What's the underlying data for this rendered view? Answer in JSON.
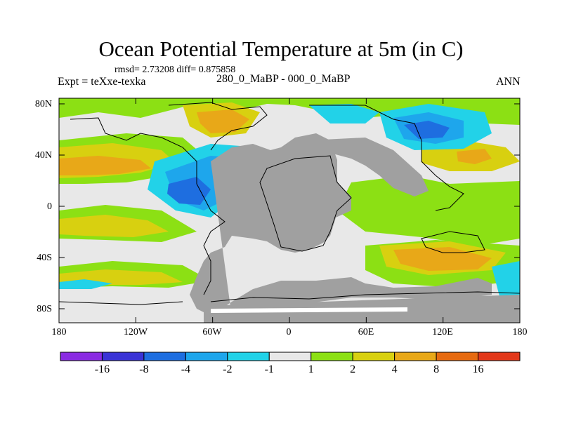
{
  "title": "Ocean Potential Temperature at 5m (in C)",
  "stats_line": "rmsd= 2.73208 diff= 0.875858",
  "experiment": "Expt = teXxe-texka",
  "subtitle": "280_0_MaBP - 000_0_MaBP",
  "season": "ANN",
  "lat_ticks": [
    "80N",
    "40N",
    "0",
    "40S",
    "80S"
  ],
  "lon_ticks": [
    "180",
    "120W",
    "60W",
    "0",
    "60E",
    "120E",
    "180"
  ],
  "colorbar": {
    "labels": [
      "-16",
      "-8",
      "-4",
      "-2",
      "-1",
      "1",
      "2",
      "4",
      "8",
      "16"
    ],
    "colors": [
      "#8a2be2",
      "#3a33d6",
      "#1e6ee0",
      "#1ea6ec",
      "#22d2e8",
      "#e8e8e8",
      "#8ce014",
      "#d8d010",
      "#e8a818",
      "#e66a10",
      "#e2381a"
    ]
  },
  "palette": {
    "land": "#a0a0a0",
    "neutral": "#e8e8e8",
    "pos_weak": "#8ce014",
    "pos_mid": "#d8d010",
    "pos_strong": "#e8a818",
    "neg_weak": "#22d2e8",
    "neg_mid": "#1ea6ec",
    "neg_strong": "#1e6ee0"
  }
}
